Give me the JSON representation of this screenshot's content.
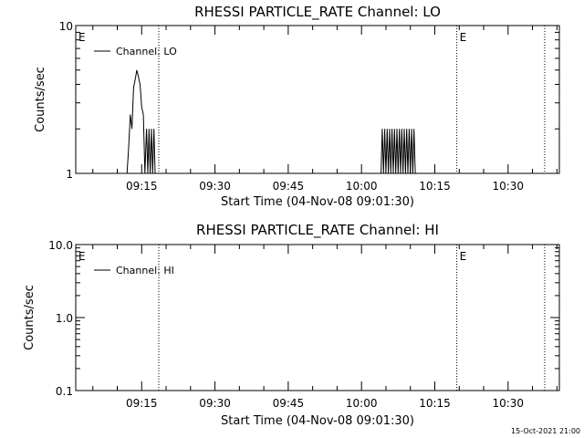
{
  "footer_timestamp": "15-Oct-2021 21:00",
  "chart_data": [
    {
      "type": "line",
      "title": "RHESSI PARTICLE_RATE Channel: LO",
      "xlabel": "Start Time (04-Nov-08 09:01:30)",
      "ylabel": "Counts/sec",
      "yscale": "log",
      "ylim": [
        1,
        10
      ],
      "xlim": [
        "09:01:30",
        "10:40:30"
      ],
      "y_ticks": [
        {
          "value": 1,
          "label": "1"
        },
        {
          "value": 10,
          "label": "10"
        }
      ],
      "x_ticks": [
        "09:15",
        "09:30",
        "09:45",
        "10:00",
        "10:15",
        "10:30"
      ],
      "legend": {
        "position": "top-left",
        "entries": [
          "Channel: LO"
        ]
      },
      "annotations": [
        {
          "label": "E",
          "x": "09:01:30",
          "line": false
        },
        {
          "label": "",
          "x": "09:18:30",
          "line": true
        },
        {
          "label": "E",
          "x": "10:19:30",
          "line": true
        },
        {
          "label": "",
          "x": "10:37:30",
          "line": true
        }
      ],
      "series": [
        {
          "name": "Channel: LO",
          "x": [
            "09:11:00",
            "09:12:00",
            "09:12:20",
            "09:12:40",
            "09:13:00",
            "09:13:20",
            "09:13:40",
            "09:14:00",
            "09:14:20",
            "09:14:40",
            "09:15:00",
            "09:15:20",
            "09:15:40",
            "09:16:00",
            "09:16:15",
            "09:16:30",
            "09:16:45",
            "09:17:00",
            "09:17:15",
            "09:17:30",
            "09:17:45",
            "09:18:00",
            "10:04:00",
            "10:04:15",
            "10:04:30",
            "10:04:45",
            "10:05:00",
            "10:05:15",
            "10:05:30",
            "10:05:45",
            "10:06:00",
            "10:06:15",
            "10:06:30",
            "10:06:45",
            "10:07:00",
            "10:07:15",
            "10:07:30",
            "10:07:45",
            "10:08:00",
            "10:08:15",
            "10:08:30",
            "10:08:45",
            "10:09:00",
            "10:09:15",
            "10:09:30",
            "10:09:45",
            "10:10:00",
            "10:10:15",
            "10:10:30",
            "10:10:45",
            "10:11:00"
          ],
          "values": [
            1,
            1,
            1.5,
            2.5,
            2.0,
            3.8,
            4.3,
            5.0,
            4.5,
            4.0,
            2.8,
            2.5,
            1,
            2,
            1,
            2,
            1,
            2,
            1,
            2,
            1,
            1,
            1,
            2,
            1,
            2,
            1,
            2,
            1,
            2,
            1,
            2,
            1,
            2,
            1,
            2,
            1,
            2,
            1,
            2,
            1,
            2,
            1,
            2,
            1,
            2,
            1,
            2,
            1,
            2,
            1
          ]
        }
      ]
    },
    {
      "type": "line",
      "title": "RHESSI PARTICLE_RATE Channel: HI",
      "xlabel": "Start Time (04-Nov-08 09:01:30)",
      "ylabel": "Counts/sec",
      "yscale": "log",
      "ylim": [
        0.1,
        10
      ],
      "xlim": [
        "09:01:30",
        "10:40:30"
      ],
      "y_ticks": [
        {
          "value": 0.1,
          "label": "0.1"
        },
        {
          "value": 1,
          "label": "1.0"
        },
        {
          "value": 10,
          "label": "10.0"
        }
      ],
      "x_ticks": [
        "09:15",
        "09:30",
        "09:45",
        "10:00",
        "10:15",
        "10:30"
      ],
      "legend": {
        "position": "top-left",
        "entries": [
          "Channel: HI"
        ]
      },
      "annotations": [
        {
          "label": "E",
          "x": "09:01:30",
          "line": false
        },
        {
          "label": "",
          "x": "09:18:30",
          "line": true
        },
        {
          "label": "E",
          "x": "10:19:30",
          "line": true
        },
        {
          "label": "",
          "x": "10:37:30",
          "line": true
        }
      ],
      "series": [
        {
          "name": "Channel: HI",
          "x": [],
          "values": []
        }
      ]
    }
  ]
}
